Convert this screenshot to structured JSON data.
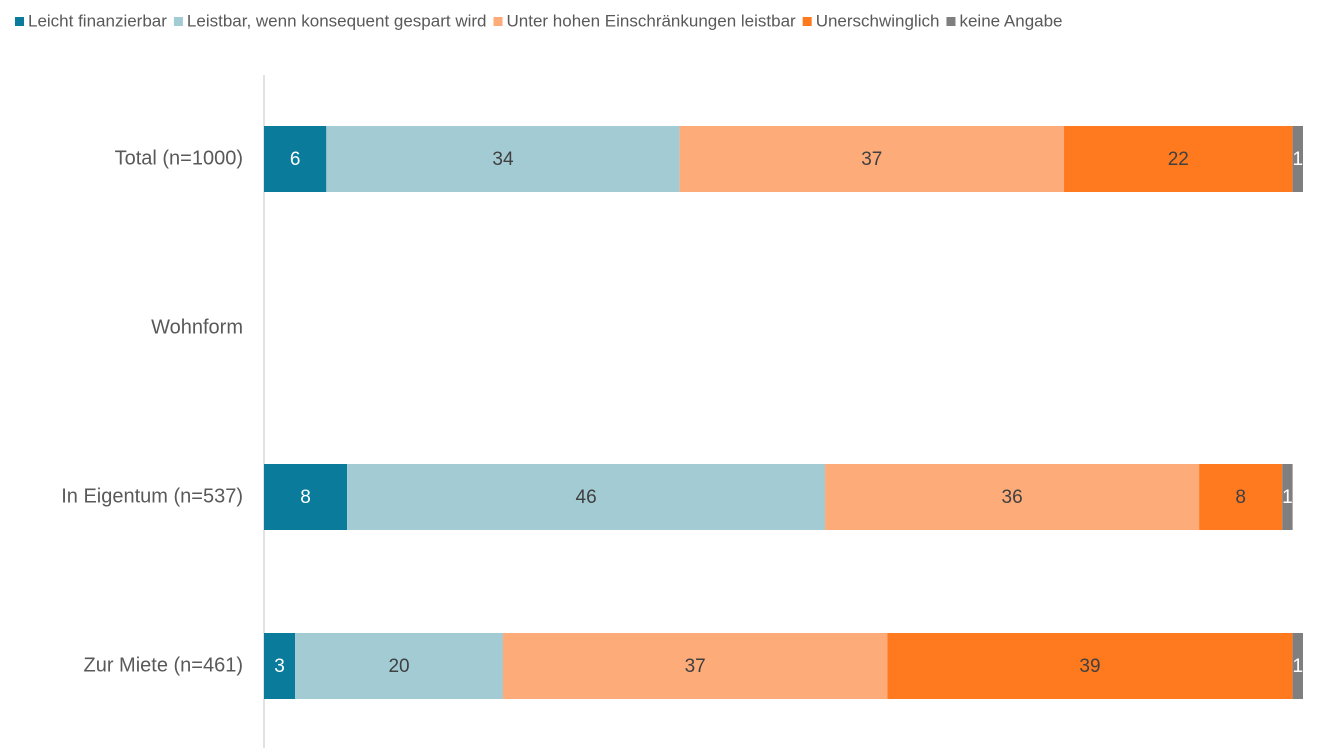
{
  "chart_data": {
    "type": "stacked-bar-horizontal",
    "categories": [
      "Total (n=1000)",
      "Wohnform",
      "In Eigentum (n=537)",
      "Zur Miete (n=461)"
    ],
    "series": [
      {
        "name": "Leicht finanzierbar",
        "color": "#0a7b9a",
        "values": [
          6,
          null,
          8,
          3
        ]
      },
      {
        "name": "Leistbar, wenn konsequent gespart wird",
        "color": "#a3cbd4",
        "values": [
          34,
          null,
          46,
          20
        ]
      },
      {
        "name": "Unter hohen Einschränkungen leistbar",
        "color": "#fdab78",
        "values": [
          37,
          null,
          36,
          37
        ]
      },
      {
        "name": "Unerschwinglich",
        "color": "#ff7a1f",
        "values": [
          22,
          null,
          8,
          39
        ]
      },
      {
        "name": "keine Angabe",
        "color": "#7f7f7f",
        "values": [
          1,
          null,
          1,
          1
        ]
      }
    ],
    "legend": "top"
  }
}
